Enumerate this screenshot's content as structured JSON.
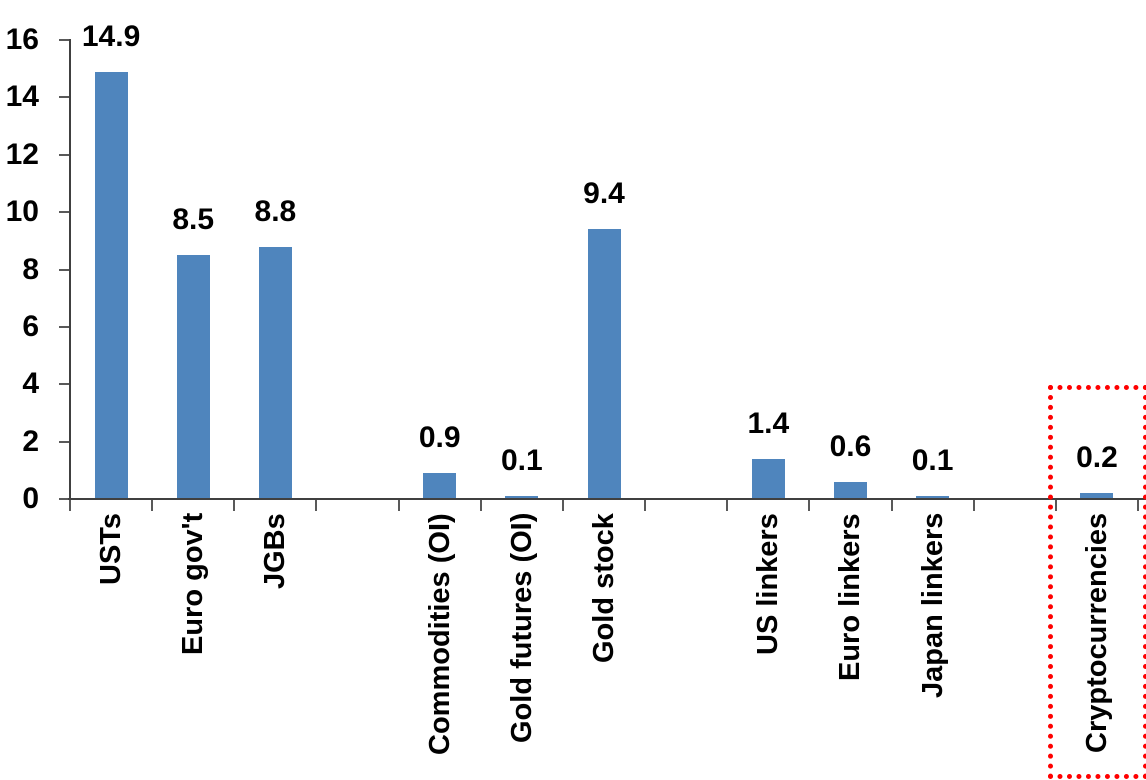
{
  "chart_data": {
    "type": "bar",
    "categories": [
      "USTs",
      "Euro gov't",
      "JGBs",
      "",
      "Commodities (OI)",
      "Gold futures (OI)",
      "Gold stock",
      "",
      "US linkers",
      "Euro linkers",
      "Japan linkers",
      "",
      "Cryptocurrencies"
    ],
    "values": [
      14.9,
      8.5,
      8.8,
      null,
      0.9,
      0.1,
      9.4,
      null,
      1.4,
      0.6,
      0.1,
      null,
      0.2
    ],
    "data_labels": [
      "14.9",
      "8.5",
      "8.8",
      null,
      "0.9",
      "0.1",
      "9.4",
      null,
      "1.4",
      "0.6",
      "0.1",
      null,
      "0.2"
    ],
    "title": "",
    "xlabel": "",
    "ylabel": "",
    "ylim": [
      0,
      16
    ],
    "yticks": [
      0,
      2,
      4,
      6,
      8,
      10,
      12,
      14,
      16
    ],
    "grid": false,
    "legend": false,
    "bar_color": "#4F85BD",
    "axis_color": "#404040",
    "tick_color": "#595959",
    "text_color": "#000000",
    "highlight": {
      "category": "Cryptocurrencies",
      "shape": "dotted-rectangle",
      "color": "#FF0000"
    }
  }
}
